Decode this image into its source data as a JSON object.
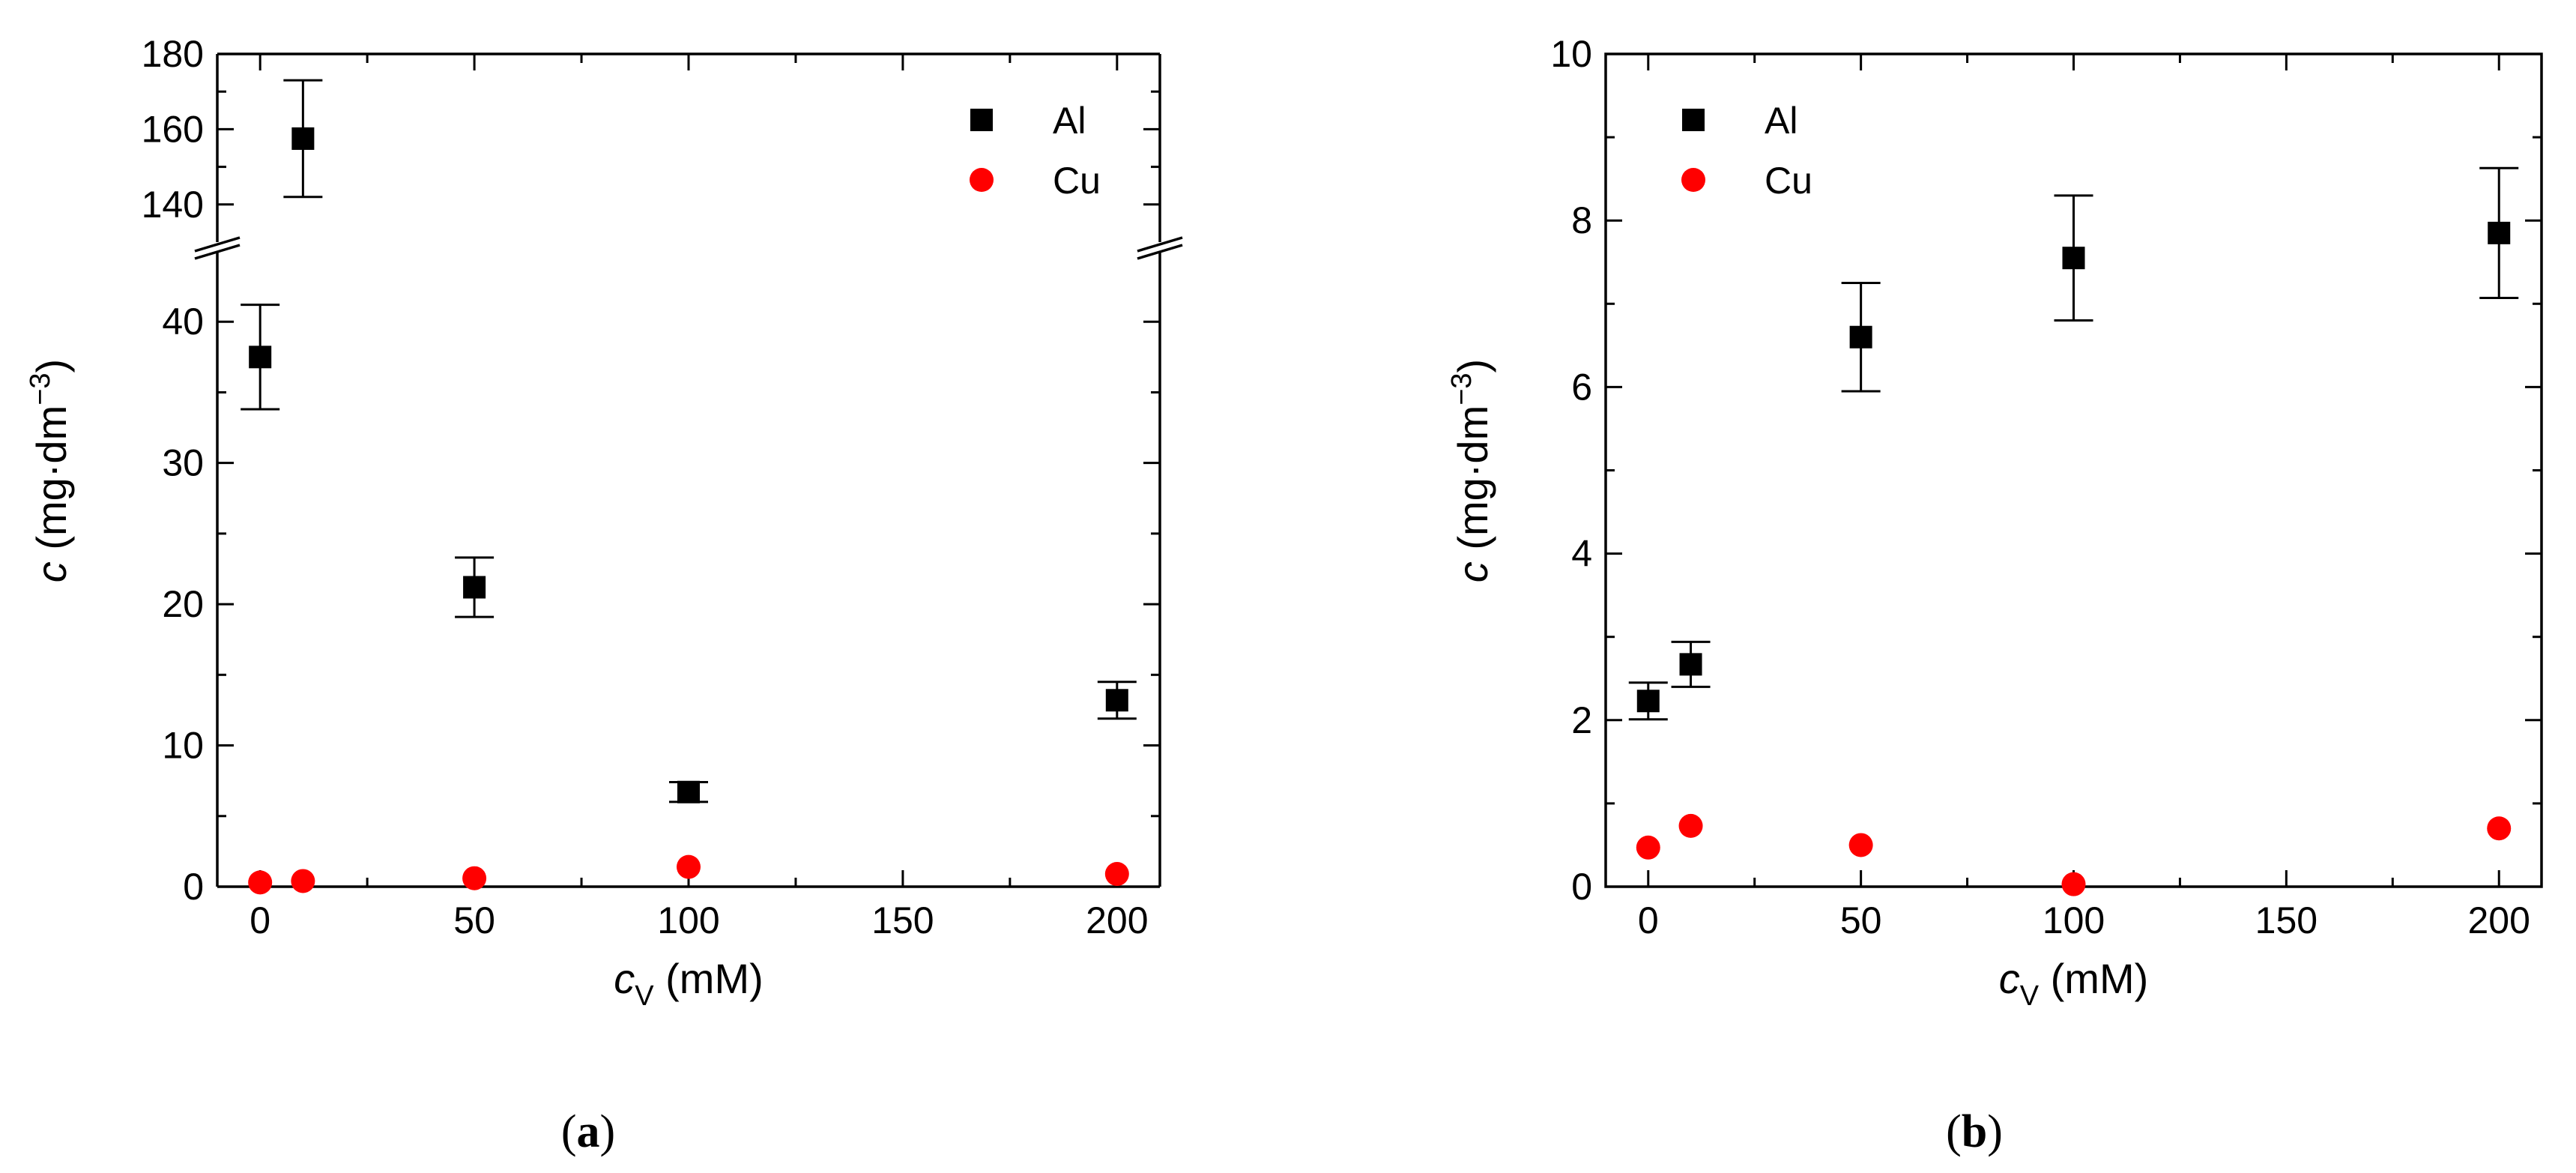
{
  "chart_data": [
    {
      "id": "a",
      "type": "scatter",
      "panel_label": "a",
      "xlabel": {
        "italic": "c",
        "sub": "V",
        "unit": "(mM)"
      },
      "ylabel": {
        "italic": "c",
        "unit_prefix": "(mg·dm",
        "sup": "−3",
        "unit_suffix": ")"
      },
      "xlim": [
        -10,
        210
      ],
      "xticks": [
        0,
        50,
        100,
        150,
        200
      ],
      "xtick_labels": [
        "0",
        "50",
        "100",
        "150",
        "200"
      ],
      "y_broken_axis": true,
      "ylim_lower": [
        0,
        45
      ],
      "ylim_upper": [
        130,
        180
      ],
      "yticks_lower": [
        0,
        10,
        20,
        30,
        40
      ],
      "ytick_labels_lower": [
        "0",
        "10",
        "20",
        "30",
        "40"
      ],
      "yticks_upper": [
        140,
        160,
        180
      ],
      "ytick_labels_upper": [
        "140",
        "160",
        "180"
      ],
      "legend_position": "top-right",
      "series": [
        {
          "name": "Al",
          "marker": "square",
          "color": "#000000",
          "x": [
            0,
            10,
            50,
            100,
            200
          ],
          "y": [
            37.5,
            157.5,
            21.2,
            6.7,
            13.2
          ],
          "err": [
            3.7,
            15.5,
            2.1,
            0.7,
            1.3
          ]
        },
        {
          "name": "Cu",
          "marker": "circle",
          "color": "#ff0000",
          "x": [
            0,
            10,
            50,
            100,
            200
          ],
          "y": [
            0.3,
            0.4,
            0.6,
            1.4,
            0.9
          ],
          "err": [
            0.1,
            0.1,
            0.1,
            0.2,
            0.1
          ]
        }
      ]
    },
    {
      "id": "b",
      "type": "scatter",
      "panel_label": "b",
      "xlabel": {
        "italic": "c",
        "sub": "V",
        "unit": "(mM)"
      },
      "ylabel": {
        "italic": "c",
        "unit_prefix": "(mg·dm",
        "sup": "−3",
        "unit_suffix": ")"
      },
      "xlim": [
        -10,
        210
      ],
      "xticks": [
        0,
        50,
        100,
        150,
        200
      ],
      "xtick_labels": [
        "0",
        "50",
        "100",
        "150",
        "200"
      ],
      "ylim": [
        0,
        10
      ],
      "yticks": [
        0,
        2,
        4,
        6,
        8,
        10
      ],
      "ytick_labels": [
        "0",
        "2",
        "4",
        "6",
        "8",
        "10"
      ],
      "legend_position": "top-left",
      "series": [
        {
          "name": "Al",
          "marker": "square",
          "color": "#000000",
          "x": [
            0,
            10,
            50,
            100,
            200
          ],
          "y": [
            2.23,
            2.67,
            6.6,
            7.55,
            7.85
          ],
          "err": [
            0.22,
            0.27,
            0.65,
            0.75,
            0.78
          ]
        },
        {
          "name": "Cu",
          "marker": "circle",
          "color": "#ff0000",
          "x": [
            0,
            10,
            50,
            100,
            200
          ],
          "y": [
            0.47,
            0.73,
            0.5,
            0.03,
            0.7
          ],
          "err": [
            0.05,
            0.07,
            0.05,
            0.02,
            0.07
          ]
        }
      ]
    }
  ]
}
